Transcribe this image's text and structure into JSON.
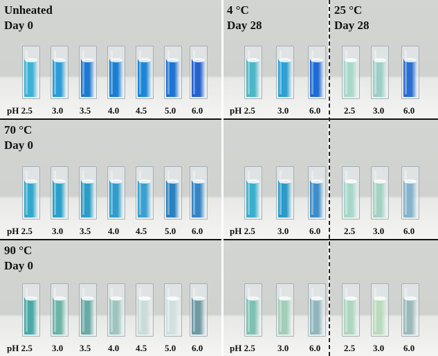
{
  "rows": [
    {
      "heading": [
        "Unheated",
        "Day 0"
      ],
      "panels": [
        {
          "heading": [],
          "ph_labels": [
            "pH 2.5",
            "3.0",
            "3.5",
            "4.0",
            "4.5",
            "5.0",
            "6.0"
          ],
          "liquid_colors": [
            "#3fb1d6",
            "#2d9bd6",
            "#1e79d0",
            "#1a7fd4",
            "#1c86d6",
            "#1f73d2",
            "#2462cf"
          ]
        },
        {
          "heading": [
            "4 °C",
            "Day 28"
          ],
          "ph_labels": [
            "pH  2.5",
            "3.0",
            "6.0"
          ],
          "liquid_colors": [
            "#4cb6c8",
            "#2da0d4",
            "#1f6ad4"
          ]
        },
        {
          "heading": [
            "25 °C",
            "Day 28"
          ],
          "ph_labels": [
            "2.5",
            "3.0",
            "6.0"
          ],
          "liquid_colors": [
            "#a9d9c8",
            "#9ccfc6",
            "#2a6fd0"
          ]
        }
      ]
    },
    {
      "heading": [
        "70 °C",
        "Day 0"
      ],
      "panels": [
        {
          "heading": [],
          "ph_labels": [
            "pH 2.5",
            "3.0",
            "3.5",
            "4.0",
            "4.5",
            "5.0",
            "6.0"
          ],
          "liquid_colors": [
            "#33a8cc",
            "#2aa0c8",
            "#2b9cc6",
            "#2f9ccc",
            "#3aa0cf",
            "#2a82c0",
            "#3585c4"
          ]
        },
        {
          "heading": [],
          "ph_labels": [
            "pH 2.5",
            "3.0",
            "6.0"
          ],
          "liquid_colors": [
            "#39afcd",
            "#2b9bc9",
            "#3d8dc9"
          ]
        },
        {
          "heading": [],
          "ph_labels": [
            "2.5",
            "3.0",
            "6.0"
          ],
          "liquid_colors": [
            "#a6d7c9",
            "#a3d1c4",
            "#85b3cb"
          ]
        }
      ]
    },
    {
      "heading": [
        "90 °C",
        "Day 0"
      ],
      "panels": [
        {
          "heading": [],
          "ph_labels": [
            "pH  2.5",
            "3.0",
            "3.5",
            "4.0",
            "4.5",
            "5.0",
            "6.0"
          ],
          "liquid_colors": [
            "#4aa9a6",
            "#6cb4a8",
            "#6aaaa6",
            "#9dc5c0",
            "#c9dcd8",
            "#d1e0dd",
            "#6f9aa4"
          ]
        },
        {
          "heading": [],
          "ph_labels": [
            "pH 2.5",
            "3.0",
            "6.0"
          ],
          "liquid_colors": [
            "#7ec1b4",
            "#a2cdb8",
            "#90b5bd"
          ]
        },
        {
          "heading": [],
          "ph_labels": [
            "2.5",
            "3.0",
            "6.0"
          ],
          "liquid_colors": [
            "#aed6bf",
            "#b9dbbc",
            "#9bb9b9"
          ]
        }
      ]
    }
  ]
}
